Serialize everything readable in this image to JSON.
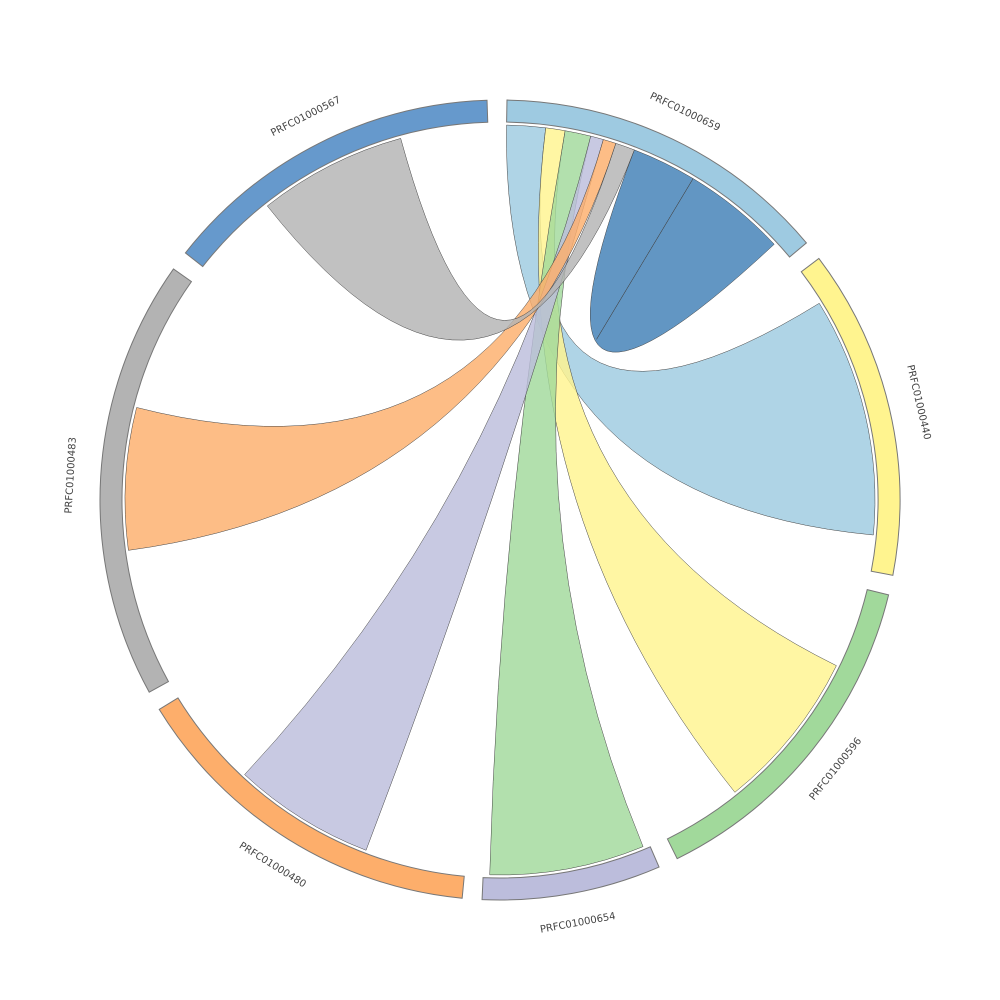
{
  "chart_data": {
    "type": "chord",
    "groups": [
      {
        "name": "PRFC01000659",
        "color": "#9ecae1",
        "value": 49
      },
      {
        "name": "PRFC01000440",
        "color": "#fff48f",
        "value": 48
      },
      {
        "name": "PRFC01000596",
        "color": "#a1d99b",
        "value": 50
      },
      {
        "name": "PRFC01000654",
        "color": "#bcbddc",
        "value": 26
      },
      {
        "name": "PRFC01000480",
        "color": "#fdae6b",
        "value": 53
      },
      {
        "name": "PRFC01000483",
        "color": "#b3b3b3",
        "value": 64
      },
      {
        "name": "PRFC01000567",
        "color": "#6699cc",
        "value": 50
      }
    ],
    "links": [
      {
        "source": 0,
        "target": 1,
        "source_value": 6,
        "target_value": 37,
        "color": "#9ecae1"
      },
      {
        "source": 0,
        "target": 2,
        "source_value": 3,
        "target_value": 25,
        "color": "#fff48f"
      },
      {
        "source": 0,
        "target": 3,
        "source_value": 4,
        "target_value": 24,
        "color": "#a1d99b"
      },
      {
        "source": 0,
        "target": 4,
        "source_value": 2,
        "target_value": 22,
        "color": "#bcbddc"
      },
      {
        "source": 0,
        "target": 5,
        "source_value": 2,
        "target_value": 22,
        "color": "#fdae6b"
      },
      {
        "source": 0,
        "target": 6,
        "source_value": 3,
        "target_value": 23,
        "color": "#b3b3b3"
      },
      {
        "source": 0,
        "target": 0,
        "source_value": 10,
        "target_value": 16,
        "color": "#3f7fb6"
      }
    ]
  }
}
